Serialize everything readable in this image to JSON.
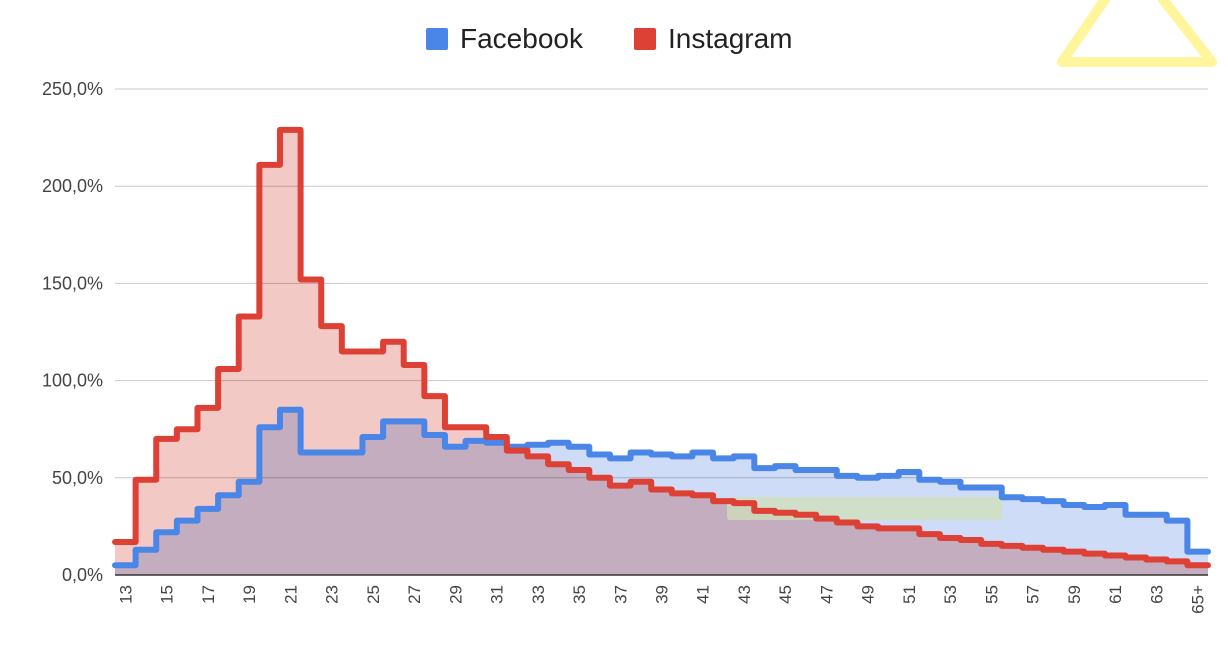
{
  "chart_data": {
    "type": "area",
    "step": true,
    "title": "",
    "xlabel": "",
    "ylabel": "",
    "ylim": [
      0,
      250
    ],
    "y_ticks": [
      {
        "value": 0,
        "label": "0,0%"
      },
      {
        "value": 50,
        "label": "50,0%"
      },
      {
        "value": 100,
        "label": "100,0%"
      },
      {
        "value": 150,
        "label": "150,0%"
      },
      {
        "value": 200,
        "label": "200,0%"
      },
      {
        "value": 250,
        "label": "250,0%"
      }
    ],
    "grid": true,
    "legend_position": "top-center",
    "categories": [
      "13",
      "14",
      "15",
      "16",
      "17",
      "18",
      "19",
      "20",
      "21",
      "22",
      "23",
      "24",
      "25",
      "26",
      "27",
      "28",
      "29",
      "30",
      "31",
      "32",
      "33",
      "34",
      "35",
      "36",
      "37",
      "38",
      "39",
      "40",
      "41",
      "42",
      "43",
      "44",
      "45",
      "46",
      "47",
      "48",
      "49",
      "50",
      "51",
      "52",
      "53",
      "54",
      "55",
      "56",
      "57",
      "58",
      "59",
      "60",
      "61",
      "62",
      "63",
      "64",
      "65+"
    ],
    "x_tick_labels": [
      "13",
      "15",
      "17",
      "19",
      "21",
      "23",
      "25",
      "27",
      "29",
      "31",
      "33",
      "35",
      "37",
      "39",
      "41",
      "43",
      "45",
      "47",
      "49",
      "51",
      "53",
      "55",
      "57",
      "59",
      "61",
      "63",
      "65+"
    ],
    "series": [
      {
        "name": "Facebook",
        "color": "#4a86e8",
        "fill": "#c5d6f7",
        "values": [
          5,
          13,
          22,
          28,
          34,
          41,
          48,
          76,
          85,
          63,
          63,
          63,
          71,
          79,
          79,
          72,
          66,
          69,
          68,
          66,
          67,
          68,
          66,
          62,
          60,
          63,
          62,
          61,
          63,
          60,
          61,
          55,
          56,
          54,
          54,
          51,
          50,
          51,
          53,
          49,
          48,
          45,
          45,
          40,
          39,
          38,
          36,
          35,
          36,
          31,
          31,
          28,
          12
        ]
      },
      {
        "name": "Instagram",
        "color": "#dd4136",
        "fill": "#f1c0bb",
        "values": [
          17,
          49,
          70,
          75,
          86,
          106,
          133,
          211,
          229,
          152,
          128,
          115,
          115,
          120,
          108,
          92,
          76,
          76,
          71,
          64,
          61,
          57,
          54,
          50,
          46,
          48,
          44,
          42,
          41,
          38,
          37,
          33,
          32,
          31,
          29,
          27,
          25,
          24,
          24,
          21,
          19,
          18,
          16,
          15,
          14,
          13,
          12,
          11,
          10,
          9,
          8,
          7,
          5
        ]
      }
    ],
    "legend": {
      "items": [
        {
          "label": "Facebook",
          "color": "#4a86e8"
        },
        {
          "label": "Instagram",
          "color": "#dd4136"
        }
      ]
    }
  },
  "overlays": {
    "watermark_color": "#fff59d",
    "highlight_color": "#cfe0b8"
  }
}
